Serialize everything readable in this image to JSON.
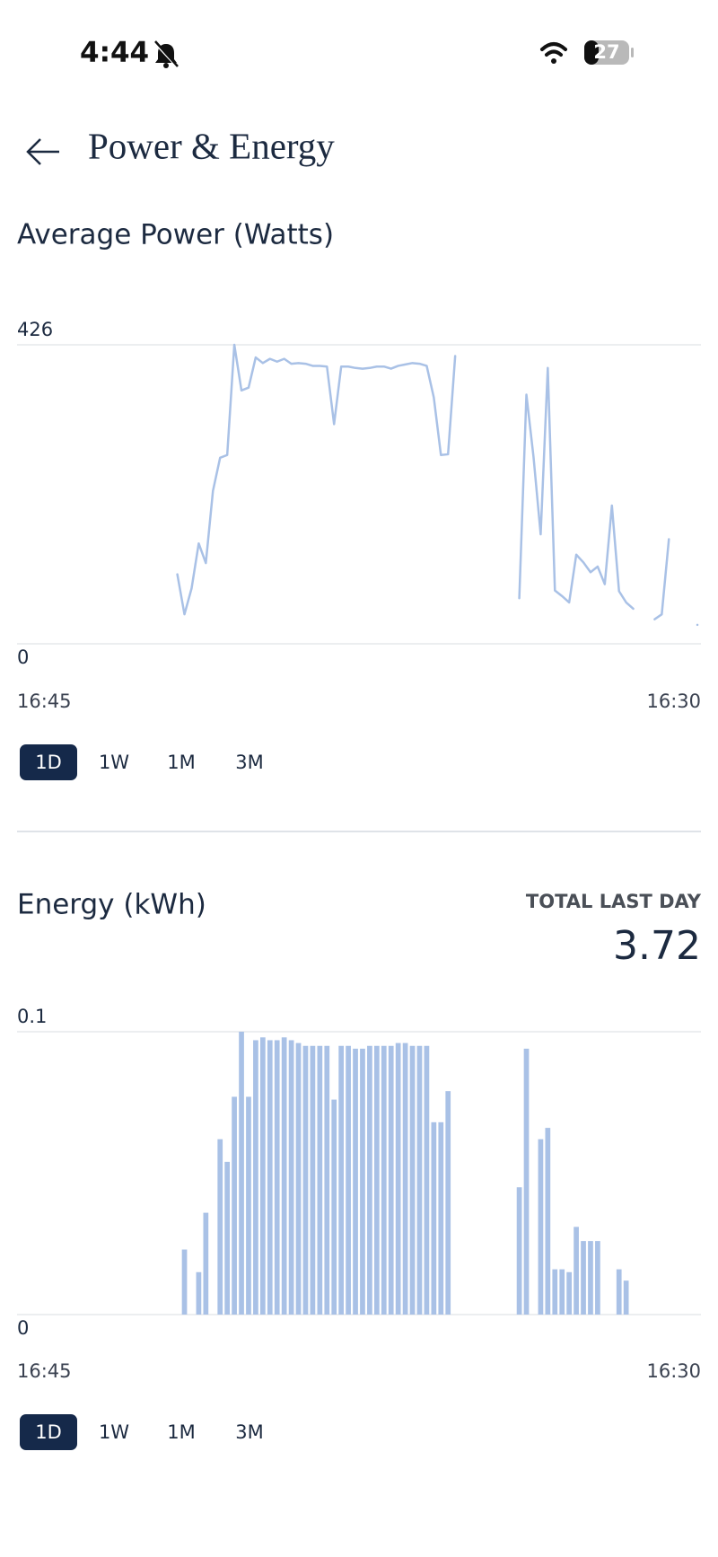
{
  "status_bar": {
    "time": "4:44",
    "battery": "27"
  },
  "header": {
    "title": "Power & Energy"
  },
  "chart_data": [
    {
      "type": "line",
      "title": "Average Power (Watts)",
      "color": "#a9c1e6",
      "grid": true,
      "ylim": [
        0,
        426
      ],
      "yticks": [
        0,
        426
      ],
      "categories": [
        "16:45",
        null,
        null,
        null,
        null,
        null,
        null,
        null,
        null,
        null,
        null,
        null,
        null,
        null,
        null,
        null,
        null,
        null,
        null,
        null,
        null,
        null,
        null,
        null,
        null,
        null,
        null,
        null,
        null,
        null,
        null,
        null,
        null,
        null,
        null,
        null,
        null,
        null,
        null,
        null,
        null,
        null,
        null,
        null,
        null,
        null,
        null,
        null,
        null,
        null,
        null,
        null,
        null,
        null,
        null,
        null,
        null,
        null,
        null,
        null,
        null,
        null,
        null,
        null,
        null,
        null,
        null,
        null,
        null,
        null,
        null,
        null,
        null,
        null,
        null,
        null,
        null,
        null,
        null,
        null,
        null,
        null,
        null,
        null,
        null,
        null,
        null,
        null,
        null,
        null,
        null,
        null,
        null,
        null,
        null,
        "16:30"
      ],
      "values": [
        null,
        null,
        null,
        null,
        null,
        null,
        null,
        null,
        null,
        null,
        null,
        null,
        null,
        null,
        null,
        null,
        null,
        null,
        null,
        null,
        null,
        null,
        99,
        42,
        79,
        143,
        115,
        218,
        265,
        269,
        426,
        361,
        365,
        408,
        400,
        406,
        402,
        406,
        399,
        400,
        399,
        396,
        396,
        395,
        313,
        395,
        395,
        393,
        392,
        393,
        395,
        395,
        392,
        396,
        398,
        400,
        399,
        396,
        351,
        269,
        270,
        410,
        null,
        null,
        null,
        null,
        null,
        null,
        null,
        null,
        65,
        355,
        266,
        156,
        393,
        76,
        68,
        59,
        127,
        116,
        102,
        110,
        85,
        197,
        75,
        59,
        50,
        null,
        null,
        35,
        42,
        149,
        null,
        null,
        null,
        27
      ],
      "tabs": [
        "1D",
        "1W",
        "1M",
        "3M"
      ],
      "active_tab": "1D"
    },
    {
      "type": "bar",
      "title": "Energy (kWh)",
      "color": "#a9c1e6",
      "grid": true,
      "total_label": "TOTAL LAST DAY",
      "total": 3.72,
      "ylim": [
        0,
        0.1
      ],
      "yticks": [
        0,
        0.1
      ],
      "categories": [
        "16:45",
        null,
        null,
        null,
        null,
        null,
        null,
        null,
        null,
        null,
        null,
        null,
        null,
        null,
        null,
        null,
        null,
        null,
        null,
        null,
        null,
        null,
        null,
        null,
        null,
        null,
        null,
        null,
        null,
        null,
        null,
        null,
        null,
        null,
        null,
        null,
        null,
        null,
        null,
        null,
        null,
        null,
        null,
        null,
        null,
        null,
        null,
        null,
        null,
        null,
        null,
        null,
        null,
        null,
        null,
        null,
        null,
        null,
        null,
        null,
        null,
        null,
        null,
        null,
        null,
        null,
        null,
        null,
        null,
        null,
        null,
        null,
        null,
        null,
        null,
        null,
        null,
        null,
        null,
        null,
        null,
        null,
        null,
        null,
        null,
        null,
        null,
        null,
        null,
        null,
        null,
        null,
        null,
        null,
        null,
        "16:30"
      ],
      "values": [
        null,
        null,
        null,
        null,
        null,
        null,
        null,
        null,
        null,
        null,
        null,
        null,
        null,
        null,
        null,
        null,
        null,
        null,
        null,
        null,
        null,
        null,
        null,
        0.023,
        null,
        0.015,
        0.036,
        null,
        0.062,
        0.054,
        0.077,
        0.1,
        0.077,
        0.097,
        0.098,
        0.097,
        0.097,
        0.098,
        0.097,
        0.096,
        0.095,
        0.095,
        0.095,
        0.095,
        0.076,
        0.095,
        0.095,
        0.094,
        0.094,
        0.095,
        0.095,
        0.095,
        0.095,
        0.096,
        0.096,
        0.095,
        0.095,
        0.095,
        0.068,
        0.068,
        0.079,
        null,
        null,
        null,
        null,
        null,
        null,
        null,
        null,
        null,
        0.045,
        0.094,
        null,
        0.062,
        0.066,
        0.016,
        0.016,
        0.015,
        0.031,
        0.026,
        0.026,
        0.026,
        null,
        null,
        0.016,
        0.012,
        null,
        null,
        null,
        null,
        null,
        null,
        null,
        null,
        null,
        null
      ],
      "tabs": [
        "1D",
        "1W",
        "1M",
        "3M"
      ],
      "active_tab": "1D"
    }
  ]
}
